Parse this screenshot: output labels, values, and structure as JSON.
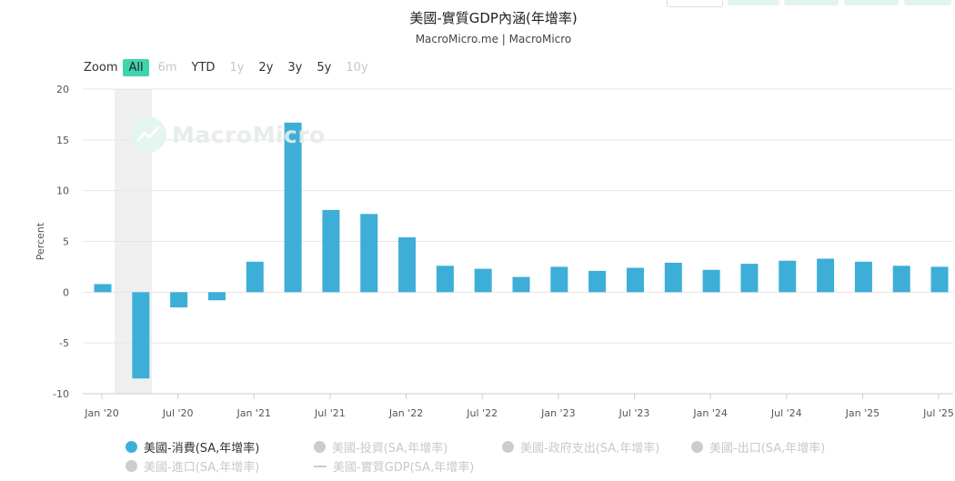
{
  "header": {
    "title": "美國-實質GDP內涵(年增率)",
    "subtitle": "MacroMicro.me | MacroMicro"
  },
  "watermark": {
    "text": "MacroMicro"
  },
  "zoom": {
    "label": "Zoom",
    "options": [
      {
        "label": "All",
        "state": "active"
      },
      {
        "label": "6m",
        "state": "disabled"
      },
      {
        "label": "YTD",
        "state": "normal"
      },
      {
        "label": "1y",
        "state": "disabled"
      },
      {
        "label": "2y",
        "state": "normal"
      },
      {
        "label": "3y",
        "state": "normal"
      },
      {
        "label": "5y",
        "state": "normal"
      },
      {
        "label": "10y",
        "state": "disabled"
      }
    ]
  },
  "chart_data": {
    "type": "bar",
    "ylabel": "Percent",
    "ylim": [
      -10,
      20
    ],
    "yticks": [
      20,
      15,
      10,
      5,
      0,
      -5,
      -10
    ],
    "grid": true,
    "bar_color": "#3daed8",
    "recession_shade": {
      "from": "2020-04",
      "to": "2020-06",
      "color": "#efefef"
    },
    "x_ticks": [
      "Jan '20",
      "Jul '20",
      "Jan '21",
      "Jul '21",
      "Jan '22",
      "Jul '22",
      "Jan '23",
      "Jul '23",
      "Jan '24",
      "Jul '24",
      "Jan '25",
      "Jul '25"
    ],
    "quarters": [
      "2020-Q1",
      "2020-Q2",
      "2020-Q3",
      "2020-Q4",
      "2021-Q1",
      "2021-Q2",
      "2021-Q3",
      "2021-Q4",
      "2022-Q1",
      "2022-Q2",
      "2022-Q3",
      "2022-Q4",
      "2023-Q1",
      "2023-Q2",
      "2023-Q3",
      "2023-Q4",
      "2024-Q1",
      "2024-Q2",
      "2024-Q3",
      "2024-Q4",
      "2025-Q1",
      "2025-Q2",
      "2025-Q3"
    ],
    "series": [
      {
        "name": "美國-消費(SA,年增率)",
        "visible": true,
        "values": [
          0.8,
          -8.5,
          -1.5,
          -0.8,
          3.0,
          16.7,
          8.1,
          7.7,
          5.4,
          2.6,
          2.3,
          1.5,
          2.5,
          2.1,
          2.4,
          2.9,
          2.2,
          2.8,
          3.1,
          3.3,
          3.0,
          2.6,
          2.5
        ]
      }
    ],
    "legend_placement": "bottom"
  },
  "legend": [
    {
      "label": "美國-消費(SA,年增率)",
      "color": "#3daed8",
      "marker": "dot",
      "visible": true
    },
    {
      "label": "美國-投資(SA,年增率)",
      "color": "#cccccc",
      "marker": "dot",
      "visible": false
    },
    {
      "label": "美國-政府支出(SA,年增率)",
      "color": "#cccccc",
      "marker": "dot",
      "visible": false
    },
    {
      "label": "美國-出口(SA,年增率)",
      "color": "#cccccc",
      "marker": "dot",
      "visible": false
    },
    {
      "label": "美國-進口(SA,年增率)",
      "color": "#cccccc",
      "marker": "dot",
      "visible": false
    },
    {
      "label": "美國-實質GDP(SA,年增率)",
      "color": "#cccccc",
      "marker": "line",
      "visible": false
    }
  ]
}
